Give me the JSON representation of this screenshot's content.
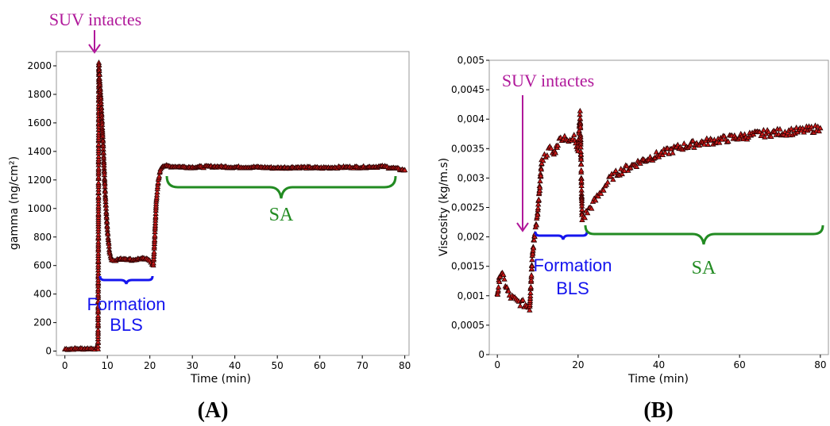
{
  "figure": {
    "panel_a_label": "(A)",
    "panel_b_label": "(B)"
  },
  "chart_data": [
    {
      "type": "scatter",
      "panel": "A",
      "xlabel": "Time (min)",
      "ylabel": "gamma (ng/cm²)",
      "xlim": [
        -2,
        81
      ],
      "ylim": [
        -30,
        2100
      ],
      "xticks": [
        0,
        10,
        20,
        30,
        40,
        50,
        60,
        70,
        80
      ],
      "yticks": [
        0,
        200,
        400,
        600,
        800,
        1000,
        1200,
        1400,
        1600,
        1800,
        2000
      ],
      "grid": false,
      "marker": {
        "shape": "triangle",
        "fill": "#cc1a1a",
        "stroke": "#2a0000"
      },
      "line_color": "#f08080",
      "series": [
        {
          "x": [
            0,
            1,
            2,
            3,
            4,
            5,
            6,
            7,
            7.8,
            8.0,
            8.2,
            8.5,
            9,
            9.5,
            10,
            10.5,
            11,
            12,
            14,
            16,
            18,
            20,
            20.8,
            21.0,
            21.5,
            22,
            22.5,
            23,
            25,
            30,
            35,
            40,
            45,
            50,
            55,
            60,
            65,
            70,
            75,
            80
          ],
          "y": [
            15,
            16,
            17,
            17,
            18,
            18,
            19,
            19,
            20,
            2020,
            1900,
            1750,
            1450,
            1100,
            850,
            700,
            640,
            640,
            650,
            640,
            650,
            640,
            600,
            700,
            1050,
            1200,
            1280,
            1300,
            1295,
            1290,
            1295,
            1290,
            1290,
            1285,
            1290,
            1285,
            1290,
            1290,
            1295,
            1270
          ]
        }
      ],
      "annotations": [
        {
          "text": "SUV intactes",
          "at_x": 8,
          "kind": "arrow"
        },
        {
          "text_lines": [
            "Formation",
            "BLS"
          ],
          "from_x": 10,
          "to_x": 21,
          "kind": "brace"
        },
        {
          "text": "SA",
          "from_x": 25,
          "to_x": 78.5,
          "kind": "brace"
        }
      ]
    },
    {
      "type": "scatter",
      "panel": "B",
      "xlabel": "Time (min)",
      "ylabel": "Viscosity (kg/m.s)",
      "xlim": [
        -2,
        82
      ],
      "ylim": [
        0,
        0.005
      ],
      "xticks": [
        0,
        20,
        40,
        60,
        80
      ],
      "yticks": [
        0,
        0.0005,
        0.001,
        0.0015,
        0.002,
        0.0025,
        0.003,
        0.0035,
        0.004,
        0.0045,
        0.005
      ],
      "yticklabels": [
        "0",
        "0,0005",
        "0,001",
        "0,0015",
        "0,002",
        "0,0025",
        "0,003",
        "0,0035",
        "0,004",
        "0,0045",
        "0,005"
      ],
      "grid": false,
      "marker": {
        "shape": "triangle",
        "fill": "#cc1a1a",
        "stroke": "#2a0000"
      },
      "series": [
        {
          "x": [
            0,
            0.5,
            1,
            1.5,
            2,
            3,
            4,
            5,
            6,
            7,
            8,
            8.3,
            8.6,
            9,
            9.3,
            9.6,
            10,
            11,
            12,
            13,
            14,
            15,
            16,
            17,
            18,
            19,
            20,
            20.5,
            21,
            22,
            23,
            24,
            26,
            28,
            30,
            33,
            36,
            40,
            45,
            50,
            55,
            60,
            65,
            70,
            75,
            80
          ],
          "y": [
            0.001,
            0.0013,
            0.0014,
            0.0013,
            0.0012,
            0.001,
            0.00095,
            0.0009,
            0.00088,
            0.00085,
            0.0008,
            0.0012,
            0.0016,
            0.0019,
            0.0021,
            0.0022,
            0.0024,
            0.0033,
            0.0034,
            0.0035,
            0.0034,
            0.0036,
            0.0037,
            0.0037,
            0.0036,
            0.0037,
            0.0035,
            0.0041,
            0.0023,
            0.0024,
            0.0025,
            0.0026,
            0.0028,
            0.003,
            0.0031,
            0.0032,
            0.0033,
            0.0034,
            0.00352,
            0.0036,
            0.00365,
            0.0037,
            0.00375,
            0.00378,
            0.0038,
            0.00385
          ]
        }
      ],
      "annotations": [
        {
          "text": "SUV intactes",
          "at_x": 7.5,
          "kind": "arrow"
        },
        {
          "text_lines": [
            "Formation",
            "BLS"
          ],
          "from_x": 10,
          "to_x": 23,
          "kind": "brace"
        },
        {
          "text": "SA",
          "from_x": 22.5,
          "to_x": 81,
          "kind": "brace"
        }
      ]
    }
  ]
}
